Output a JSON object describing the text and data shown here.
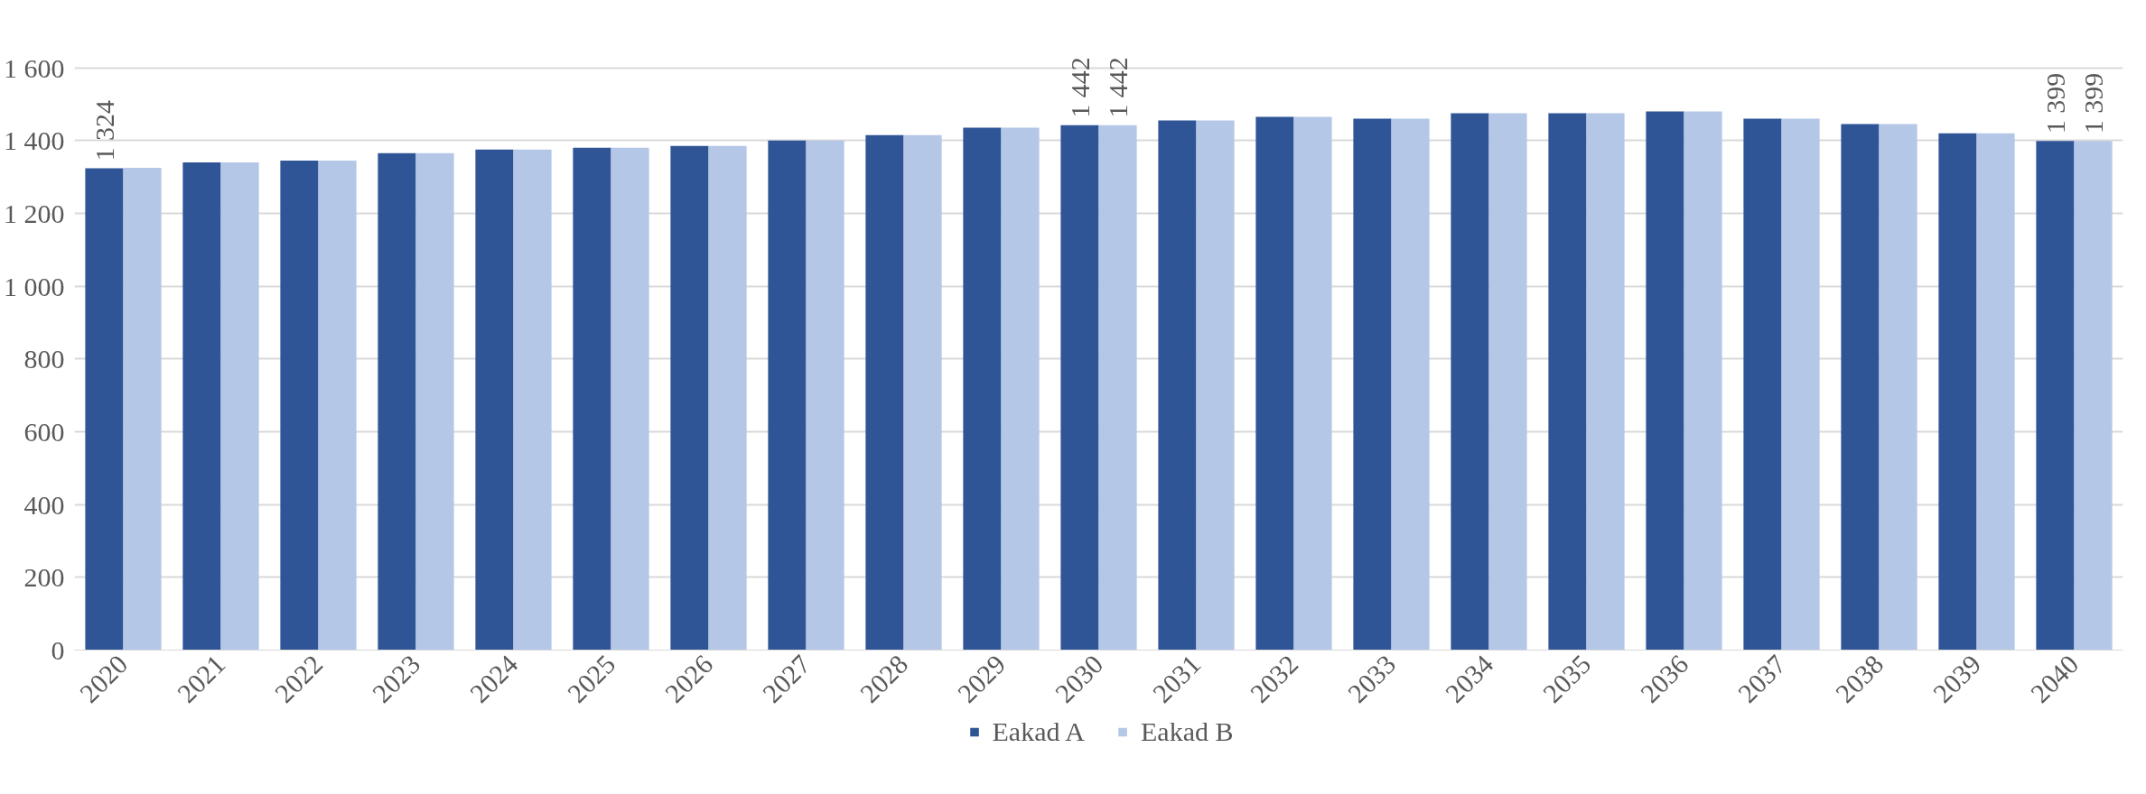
{
  "chart_data": {
    "type": "bar",
    "categories": [
      "2020",
      "2021",
      "2022",
      "2023",
      "2024",
      "2025",
      "2026",
      "2027",
      "2028",
      "2029",
      "2030",
      "2031",
      "2032",
      "2033",
      "2034",
      "2035",
      "2036",
      "2037",
      "2038",
      "2039",
      "2040"
    ],
    "series": [
      {
        "name": "Eakad A",
        "color": "#2f5597",
        "values": [
          1324,
          1340,
          1345,
          1365,
          1375,
          1380,
          1385,
          1400,
          1415,
          1435,
          1442,
          1455,
          1465,
          1460,
          1475,
          1475,
          1480,
          1460,
          1445,
          1420,
          1399
        ],
        "value_labels": [
          "1 324",
          null,
          null,
          null,
          null,
          null,
          null,
          null,
          null,
          null,
          "1 442",
          null,
          null,
          null,
          null,
          null,
          null,
          null,
          null,
          null,
          "1 399"
        ]
      },
      {
        "name": "Eakad B",
        "color": "#b4c7e7",
        "values": [
          1325,
          1340,
          1345,
          1365,
          1375,
          1380,
          1385,
          1400,
          1415,
          1435,
          1442,
          1455,
          1465,
          1460,
          1475,
          1475,
          1480,
          1460,
          1445,
          1420,
          1399
        ],
        "value_labels": [
          null,
          null,
          null,
          null,
          null,
          null,
          null,
          null,
          null,
          null,
          "1 442",
          null,
          null,
          null,
          null,
          null,
          null,
          null,
          null,
          null,
          "1 399"
        ]
      }
    ],
    "ylim": [
      0,
      1600
    ],
    "yticks": [
      {
        "value": 0,
        "label": "0"
      },
      {
        "value": 200,
        "label": "200"
      },
      {
        "value": 400,
        "label": "400"
      },
      {
        "value": 600,
        "label": "600"
      },
      {
        "value": 800,
        "label": "800"
      },
      {
        "value": 1000,
        "label": "1 000"
      },
      {
        "value": 1200,
        "label": "1 200"
      },
      {
        "value": 1400,
        "label": "1 400"
      },
      {
        "value": 1600,
        "label": "1 600"
      }
    ],
    "grid": "y",
    "legend": "bottom"
  }
}
